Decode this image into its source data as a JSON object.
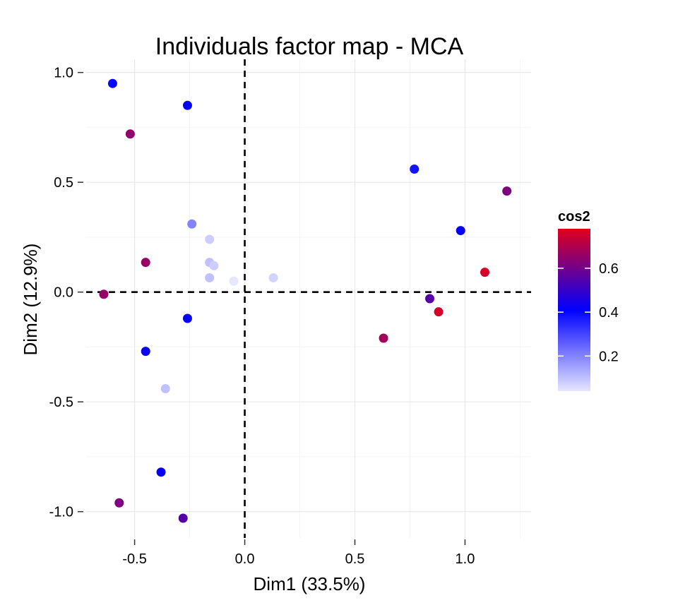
{
  "chart_data": {
    "type": "scatter",
    "title": "Individuals factor map - MCA",
    "xlabel": "Dim1 (33.5%)",
    "ylabel": "Dim2 (12.9%)",
    "xlim": [
      -0.72,
      1.3
    ],
    "ylim": [
      -1.12,
      1.06
    ],
    "x_ticks": [
      -0.5,
      0.0,
      0.5,
      1.0
    ],
    "x_tick_labels": [
      "-0.5",
      "0.0",
      "0.5",
      "1.0"
    ],
    "y_ticks": [
      -1.0,
      -0.5,
      0.0,
      0.5,
      1.0
    ],
    "y_tick_labels": [
      "-1.0",
      "-0.5",
      "0.0",
      "0.5",
      "1.0"
    ],
    "reference_lines": {
      "x": 0,
      "y": 0,
      "style": "dashed"
    },
    "grid": true,
    "color_legend": {
      "title": "cos2",
      "ticks": [
        0.2,
        0.4,
        0.6
      ],
      "tick_labels": [
        "0.2",
        "0.4",
        "0.6"
      ],
      "range": [
        0.04,
        0.78
      ],
      "low_color": "#e6e6ff",
      "mid_color": "#0000ff",
      "high_color": "#e0001b",
      "placement": "right"
    },
    "points": [
      {
        "x": -0.6,
        "y": 0.95,
        "cos2": 0.4
      },
      {
        "x": -0.26,
        "y": 0.85,
        "cos2": 0.42
      },
      {
        "x": -0.52,
        "y": 0.72,
        "cos2": 0.65
      },
      {
        "x": -0.24,
        "y": 0.31,
        "cos2": 0.2
      },
      {
        "x": -0.16,
        "y": 0.24,
        "cos2": 0.08
      },
      {
        "x": -0.45,
        "y": 0.135,
        "cos2": 0.66
      },
      {
        "x": -0.16,
        "y": 0.135,
        "cos2": 0.1
      },
      {
        "x": -0.14,
        "y": 0.12,
        "cos2": 0.08
      },
      {
        "x": -0.16,
        "y": 0.065,
        "cos2": 0.1
      },
      {
        "x": -0.05,
        "y": 0.05,
        "cos2": 0.04
      },
      {
        "x": 0.13,
        "y": 0.065,
        "cos2": 0.07
      },
      {
        "x": -0.64,
        "y": -0.01,
        "cos2": 0.66
      },
      {
        "x": -0.26,
        "y": -0.12,
        "cos2": 0.42
      },
      {
        "x": -0.45,
        "y": -0.27,
        "cos2": 0.43
      },
      {
        "x": -0.36,
        "y": -0.44,
        "cos2": 0.1
      },
      {
        "x": -0.38,
        "y": -0.82,
        "cos2": 0.42
      },
      {
        "x": -0.57,
        "y": -0.96,
        "cos2": 0.62
      },
      {
        "x": -0.28,
        "y": -1.03,
        "cos2": 0.55
      },
      {
        "x": 0.77,
        "y": 0.56,
        "cos2": 0.38
      },
      {
        "x": 1.19,
        "y": 0.46,
        "cos2": 0.62
      },
      {
        "x": 0.98,
        "y": 0.28,
        "cos2": 0.42
      },
      {
        "x": 1.09,
        "y": 0.09,
        "cos2": 0.76
      },
      {
        "x": 0.84,
        "y": -0.03,
        "cos2": 0.55
      },
      {
        "x": 0.88,
        "y": -0.09,
        "cos2": 0.76
      },
      {
        "x": 0.63,
        "y": -0.21,
        "cos2": 0.68
      }
    ]
  }
}
